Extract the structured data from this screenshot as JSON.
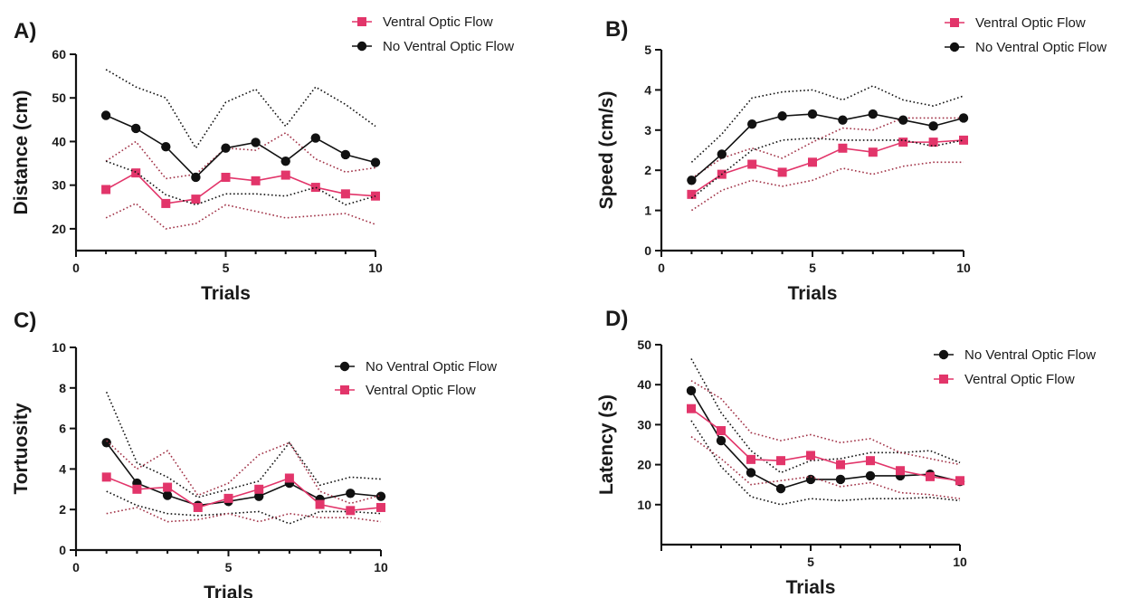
{
  "colors": {
    "ventral": "#e2356a",
    "ventral_band": "#a03045",
    "no_ventral": "#111111"
  },
  "chart_data": [
    {
      "panel": "A)",
      "type": "line",
      "xlabel": "Trials",
      "ylabel": "Distance (cm)",
      "xlim": [
        0,
        10
      ],
      "ylim": [
        15,
        60
      ],
      "xticks": [
        0,
        5,
        10
      ],
      "yticks": [
        20,
        30,
        40,
        50,
        60
      ],
      "legend_position": "top-right",
      "series": [
        {
          "name": "Ventral Optic Flow",
          "marker": "square",
          "color": "#e2356a",
          "x": [
            1,
            2,
            3,
            4,
            5,
            6,
            7,
            8,
            9,
            10
          ],
          "y": [
            29.0,
            32.8,
            25.8,
            26.8,
            31.8,
            31.0,
            32.3,
            29.5,
            28.0,
            27.5
          ],
          "upper": [
            35.5,
            40.0,
            31.5,
            32.5,
            38.5,
            38.0,
            42.0,
            36.0,
            33.0,
            34.0
          ],
          "lower": [
            22.5,
            25.8,
            20.0,
            21.2,
            25.5,
            24.0,
            22.5,
            23.0,
            23.5,
            21.0
          ]
        },
        {
          "name": "No Ventral Optic Flow",
          "marker": "circle",
          "color": "#111111",
          "x": [
            1,
            2,
            3,
            4,
            5,
            6,
            7,
            8,
            9,
            10
          ],
          "y": [
            46.0,
            43.0,
            38.8,
            31.8,
            38.5,
            39.8,
            35.5,
            40.8,
            37.0,
            35.2
          ],
          "upper": [
            56.5,
            52.5,
            50.0,
            38.5,
            49.0,
            52.0,
            43.5,
            52.5,
            48.5,
            43.5
          ],
          "lower": [
            35.5,
            33.0,
            27.8,
            25.5,
            28.0,
            28.0,
            27.5,
            29.5,
            25.5,
            27.5
          ]
        }
      ]
    },
    {
      "panel": "B)",
      "type": "line",
      "xlabel": "Trials",
      "ylabel": "Speed (cm/s)",
      "xlim": [
        0,
        10
      ],
      "ylim": [
        0,
        5
      ],
      "xticks": [
        0,
        5,
        10
      ],
      "yticks": [
        0,
        1,
        2,
        3,
        4,
        5
      ],
      "legend_position": "top-right",
      "series": [
        {
          "name": "Ventral Optic Flow",
          "marker": "square",
          "color": "#e2356a",
          "x": [
            1,
            2,
            3,
            4,
            5,
            6,
            7,
            8,
            9,
            10
          ],
          "y": [
            1.4,
            1.9,
            2.15,
            1.95,
            2.2,
            2.55,
            2.45,
            2.7,
            2.7,
            2.75
          ],
          "upper": [
            1.8,
            2.3,
            2.55,
            2.3,
            2.7,
            3.05,
            3.0,
            3.3,
            3.3,
            3.3
          ],
          "lower": [
            1.0,
            1.5,
            1.75,
            1.6,
            1.75,
            2.05,
            1.9,
            2.1,
            2.2,
            2.2
          ]
        },
        {
          "name": "No Ventral Optic Flow",
          "marker": "circle",
          "color": "#111111",
          "x": [
            1,
            2,
            3,
            4,
            5,
            6,
            7,
            8,
            9,
            10
          ],
          "y": [
            1.75,
            2.4,
            3.15,
            3.35,
            3.4,
            3.25,
            3.4,
            3.25,
            3.1,
            3.3
          ],
          "upper": [
            2.2,
            2.9,
            3.8,
            3.95,
            4.0,
            3.75,
            4.1,
            3.75,
            3.6,
            3.85
          ],
          "lower": [
            1.3,
            1.9,
            2.5,
            2.75,
            2.8,
            2.75,
            2.75,
            2.75,
            2.6,
            2.75
          ]
        }
      ]
    },
    {
      "panel": "C)",
      "type": "line",
      "xlabel": "Trials",
      "ylabel": "Tortuosity",
      "xlim": [
        0,
        10
      ],
      "ylim": [
        0,
        10
      ],
      "xticks": [
        0,
        5,
        10
      ],
      "yticks": [
        0,
        2,
        4,
        6,
        8,
        10
      ],
      "legend_position": "right",
      "series": [
        {
          "name": "No Ventral Optic Flow",
          "marker": "circle",
          "color": "#111111",
          "x": [
            1,
            2,
            3,
            4,
            5,
            6,
            7,
            8,
            9,
            10
          ],
          "y": [
            5.3,
            3.3,
            2.7,
            2.2,
            2.4,
            2.65,
            3.3,
            2.5,
            2.8,
            2.65
          ],
          "upper": [
            7.8,
            4.3,
            3.6,
            2.6,
            3.0,
            3.4,
            5.3,
            3.2,
            3.6,
            3.5
          ],
          "lower": [
            2.9,
            2.2,
            1.8,
            1.7,
            1.8,
            1.9,
            1.3,
            1.9,
            1.9,
            1.8
          ]
        },
        {
          "name": "Ventral Optic Flow",
          "marker": "square",
          "color": "#e2356a",
          "x": [
            1,
            2,
            3,
            4,
            5,
            6,
            7,
            8,
            9,
            10
          ],
          "y": [
            3.6,
            3.0,
            3.1,
            2.1,
            2.55,
            3.0,
            3.55,
            2.25,
            1.95,
            2.1
          ],
          "upper": [
            5.4,
            4.0,
            4.9,
            2.7,
            3.3,
            4.7,
            5.3,
            2.9,
            2.3,
            2.7
          ],
          "lower": [
            1.8,
            2.1,
            1.4,
            1.5,
            1.8,
            1.4,
            1.8,
            1.6,
            1.6,
            1.4
          ]
        }
      ]
    },
    {
      "panel": "D)",
      "type": "line",
      "xlabel": "Trials",
      "ylabel": "Latency (s)",
      "xlim": [
        0,
        10
      ],
      "ylim": [
        0,
        50
      ],
      "xticks": [
        5,
        10
      ],
      "yticks": [
        10,
        20,
        30,
        40,
        50
      ],
      "legend_position": "top-right",
      "series": [
        {
          "name": "No Ventral Optic Flow",
          "marker": "circle",
          "color": "#111111",
          "x": [
            1,
            2,
            3,
            4,
            5,
            6,
            7,
            8,
            9,
            10
          ],
          "y": [
            38.5,
            26.0,
            18.0,
            14.0,
            16.3,
            16.3,
            17.2,
            17.2,
            17.6,
            15.8
          ],
          "upper": [
            46.5,
            33.0,
            23.5,
            18.0,
            21.0,
            21.5,
            23.0,
            23.0,
            23.5,
            20.5
          ],
          "lower": [
            31.0,
            19.5,
            12.0,
            10.0,
            11.5,
            11.0,
            11.5,
            11.5,
            11.8,
            11.0
          ]
        },
        {
          "name": "Ventral Optic Flow",
          "marker": "square",
          "color": "#e2356a",
          "x": [
            1,
            2,
            3,
            4,
            5,
            6,
            7,
            8,
            9,
            10
          ],
          "y": [
            34.0,
            28.5,
            21.3,
            21.0,
            22.3,
            20.0,
            21.0,
            18.5,
            17.0,
            16.0
          ],
          "upper": [
            41.0,
            36.5,
            28.0,
            26.0,
            27.5,
            25.5,
            26.5,
            23.0,
            21.5,
            20.0
          ],
          "lower": [
            27.0,
            21.5,
            15.0,
            16.0,
            17.0,
            14.5,
            15.5,
            13.0,
            12.5,
            11.5
          ]
        }
      ]
    }
  ]
}
